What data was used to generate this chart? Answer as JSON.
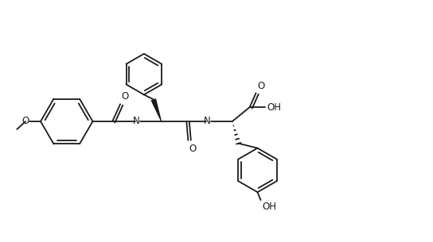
{
  "line_color": "#1a1a1a",
  "bg_color": "#ffffff",
  "lw": 1.3,
  "figsize": [
    5.44,
    3.05
  ],
  "dpi": 100,
  "xlim": [
    0,
    544
  ],
  "ylim": [
    0,
    305
  ]
}
